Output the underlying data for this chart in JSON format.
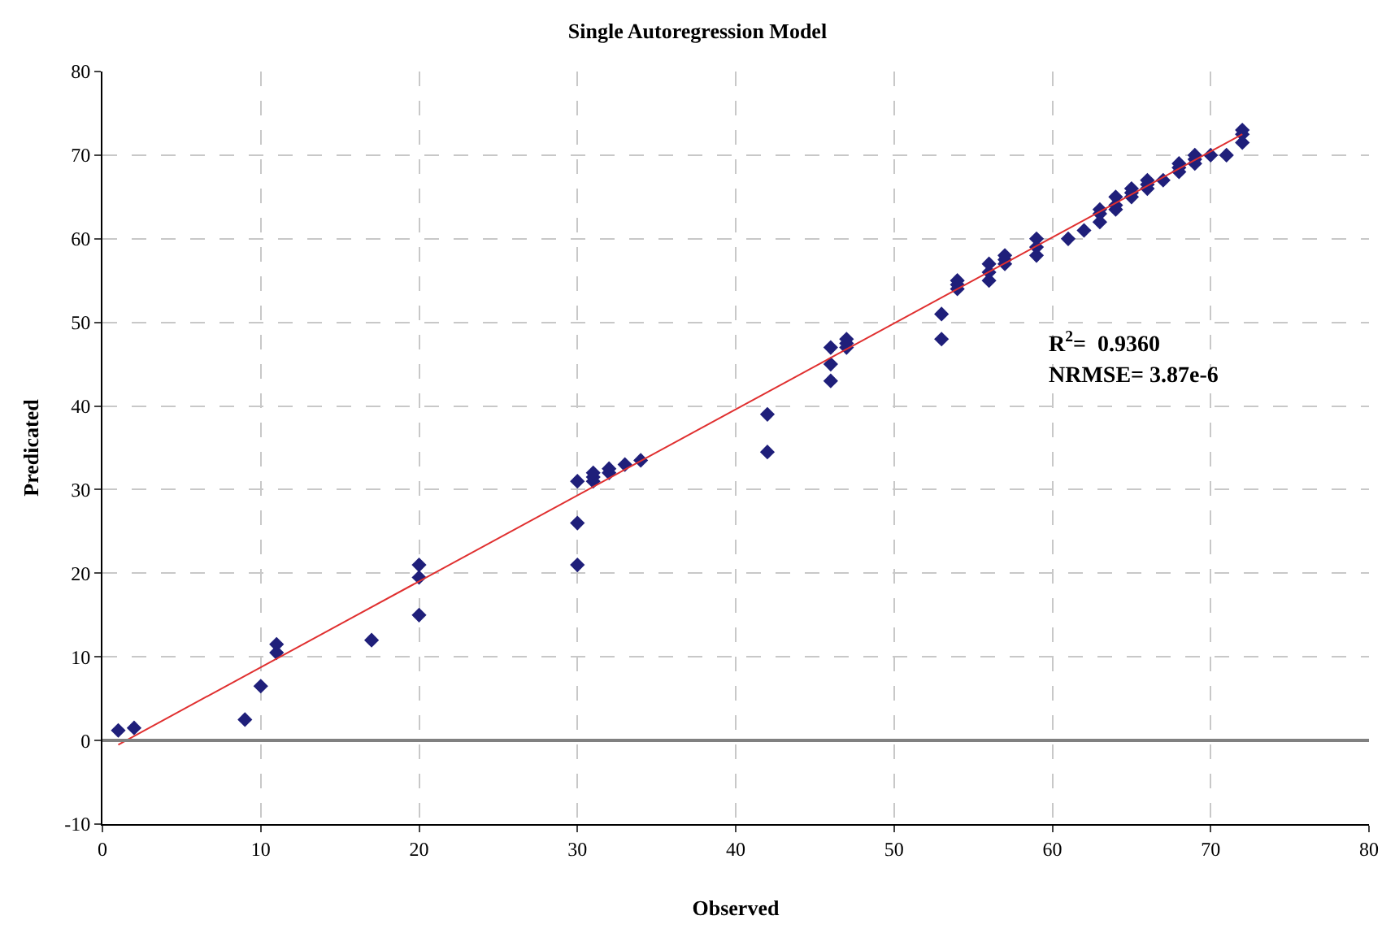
{
  "chart_data": {
    "type": "scatter",
    "title": "Single Autoregression Model",
    "xlabel": "Observed",
    "ylabel": "Predicated",
    "xlim": [
      0,
      80
    ],
    "ylim": [
      -10,
      80
    ],
    "xticks": [
      0,
      10,
      20,
      30,
      40,
      50,
      60,
      70,
      80
    ],
    "yticks": [
      -10,
      0,
      10,
      20,
      30,
      40,
      50,
      60,
      70,
      80
    ],
    "grid": true,
    "marker": "diamond",
    "annotations": [
      "R$^{2}$=  0.9360",
      "NRMSE= 3.87e-6"
    ],
    "series": [
      {
        "color": "#1f1f7a",
        "x": [
          1,
          2,
          9,
          10,
          11,
          11,
          17,
          20,
          20,
          20,
          30,
          30,
          30,
          31,
          31,
          31,
          32,
          32,
          33,
          34,
          42,
          42,
          46,
          46,
          46,
          47,
          47,
          47,
          53,
          53,
          54,
          54,
          54,
          56,
          56,
          56,
          57,
          57,
          57,
          59,
          59,
          59,
          61,
          62,
          63,
          63,
          63,
          64,
          64,
          64,
          65,
          65,
          65,
          66,
          66,
          66,
          67,
          68,
          68,
          68,
          69,
          69,
          69,
          70,
          71,
          72,
          72,
          72
        ],
        "values": [
          1.2,
          1.5,
          2.5,
          6.5,
          10.5,
          11.5,
          12,
          15,
          19.5,
          21,
          21,
          26,
          31,
          31,
          31.5,
          32,
          32,
          32.5,
          33,
          33.5,
          34.5,
          39,
          43,
          45,
          47,
          47,
          47.5,
          48,
          48,
          51,
          54,
          54.5,
          55,
          55,
          56,
          57,
          57,
          57.5,
          58,
          58,
          59,
          60,
          60,
          61,
          62,
          63,
          63.5,
          63.5,
          64,
          65,
          65,
          65.5,
          66,
          66,
          66.5,
          67,
          67,
          68,
          68.5,
          69,
          69,
          69.5,
          70,
          70,
          70,
          71.5,
          72.5,
          73
        ]
      },
      {
        "type": "line",
        "color": "#e03030",
        "x": [
          1,
          72
        ],
        "values": [
          -0.5,
          72.5
        ],
        "marker": "none",
        "line_style": "solid"
      }
    ]
  }
}
